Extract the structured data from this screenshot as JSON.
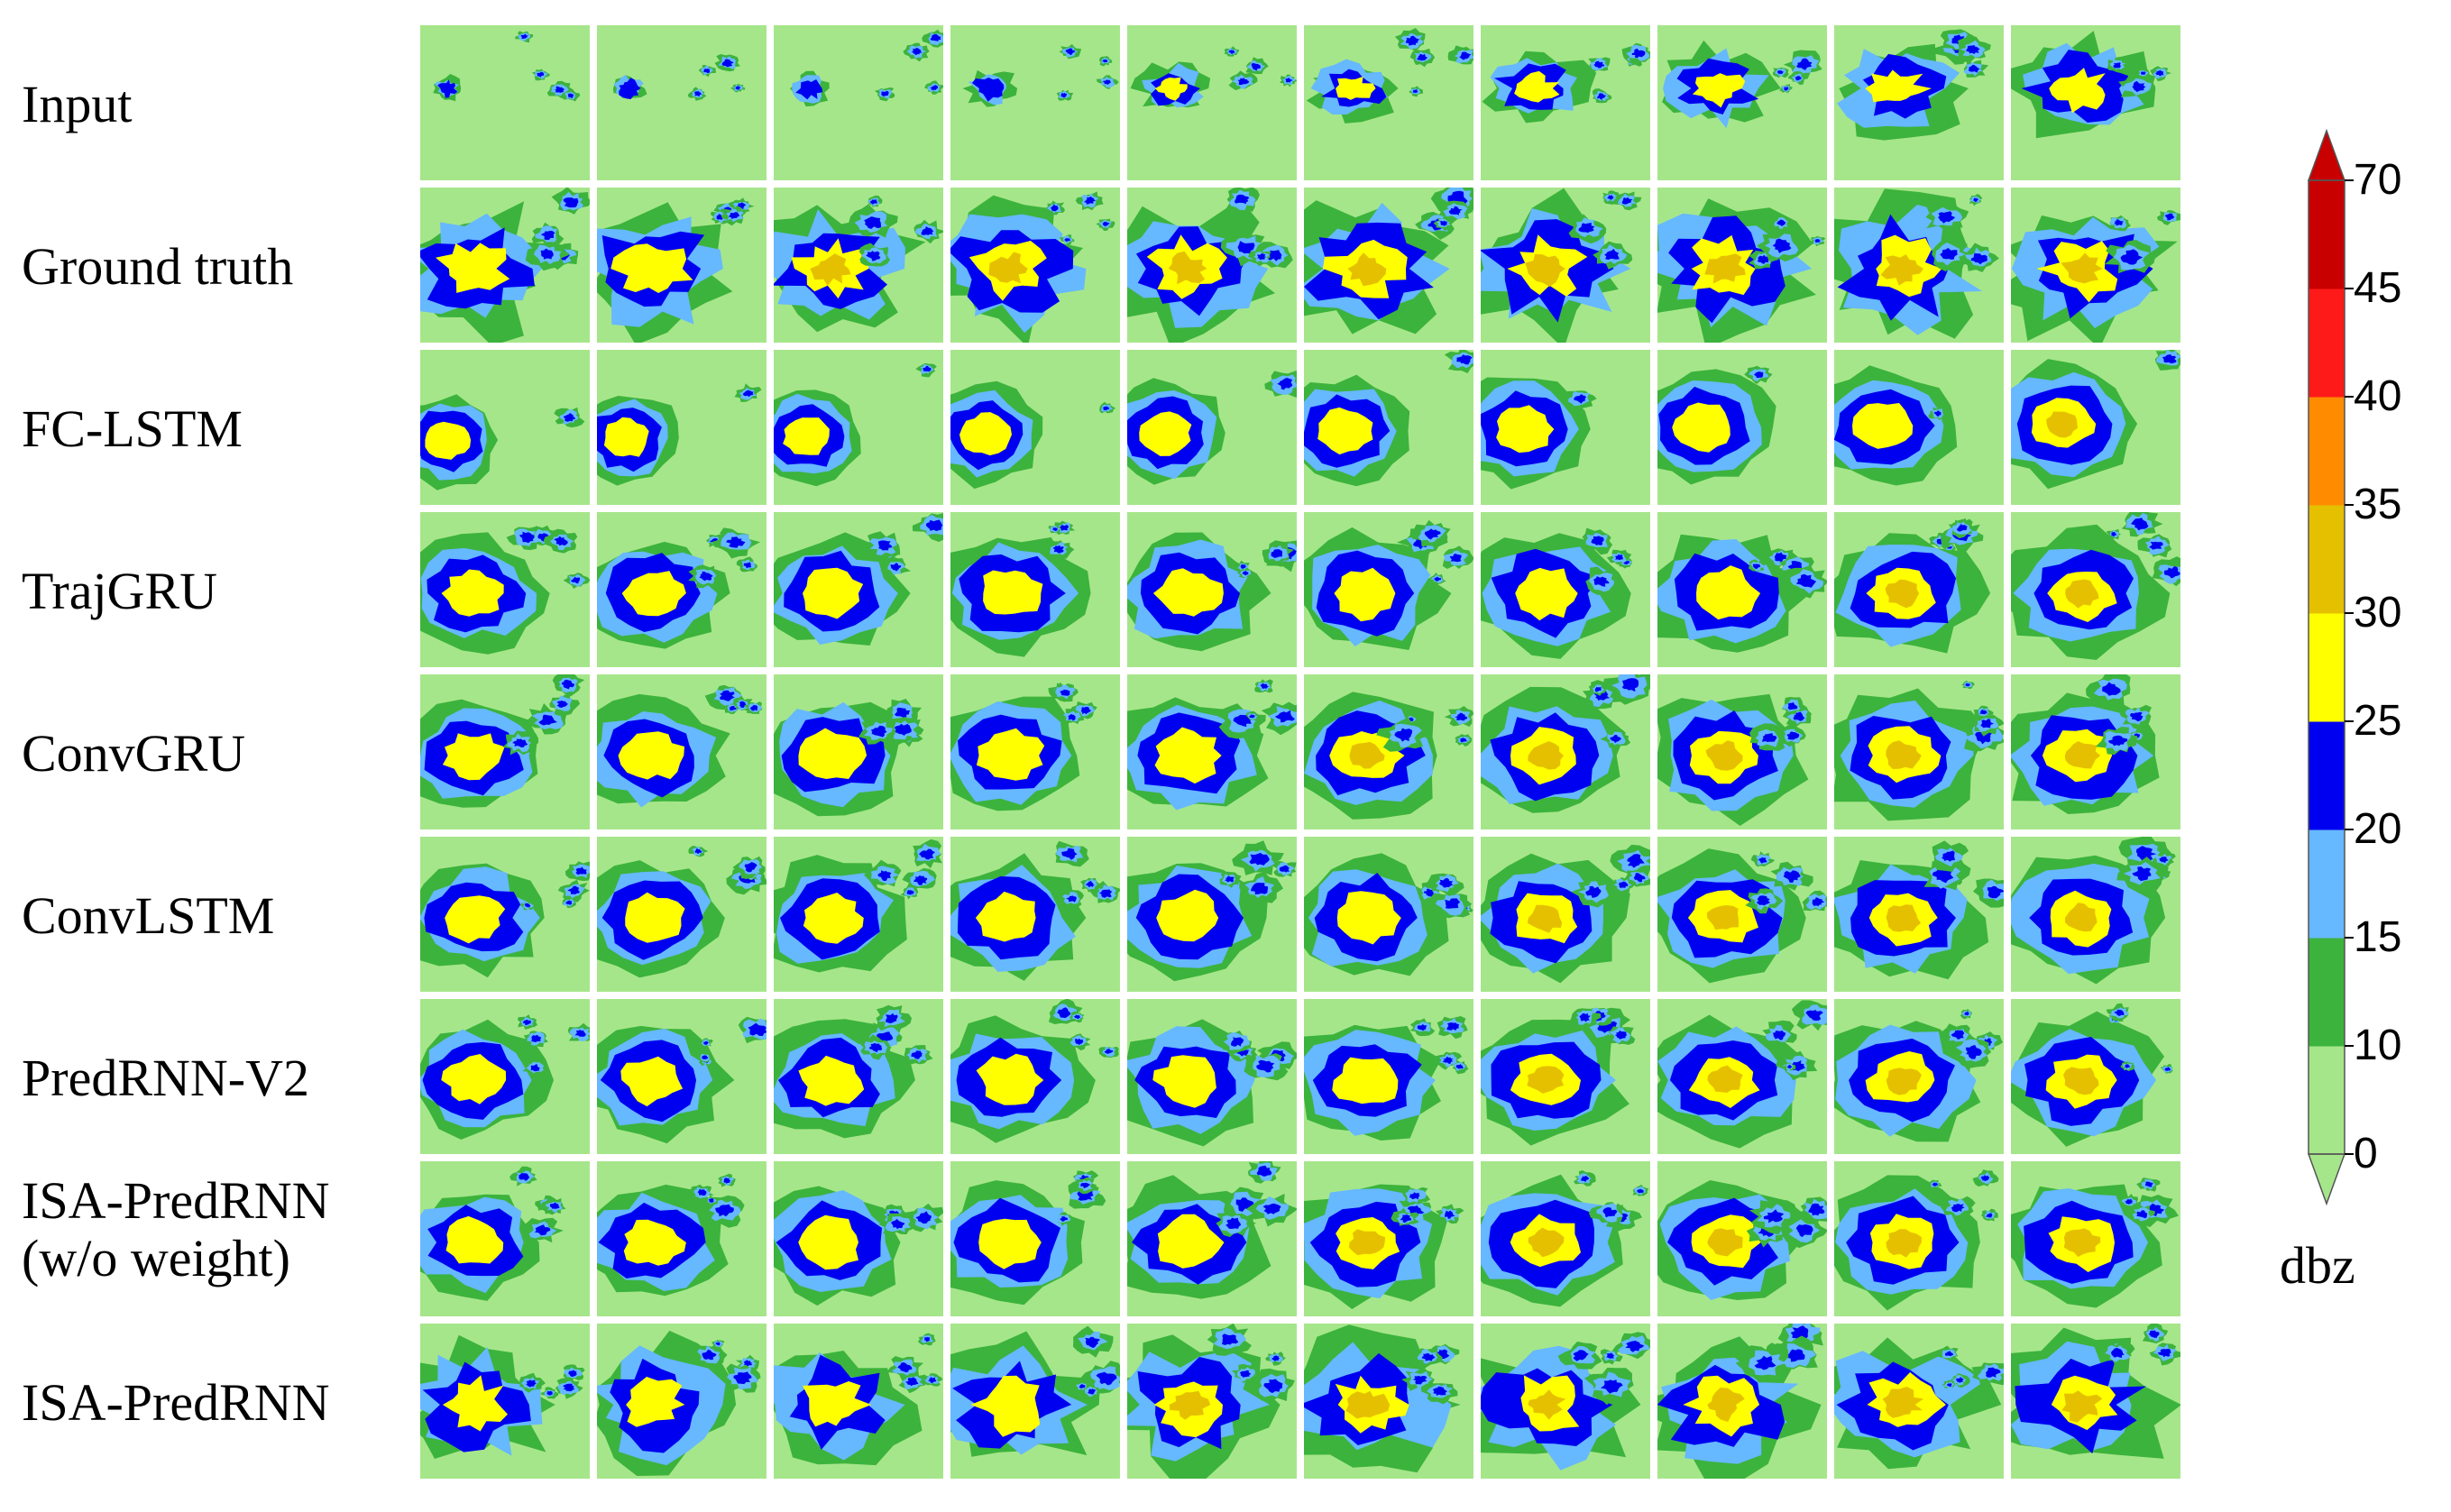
{
  "figure": {
    "rows": [
      {
        "label": "Input",
        "label2": "",
        "intensity": [
          0.05,
          0.08,
          0.12,
          0.2,
          0.32,
          0.42,
          0.55,
          0.65,
          0.72,
          0.78
        ],
        "style": "input"
      },
      {
        "label": "Ground truth",
        "label2": "",
        "intensity": [
          0.8,
          0.82,
          0.85,
          0.88,
          0.92,
          0.95,
          0.96,
          0.97,
          0.98,
          0.99
        ],
        "style": "truth"
      },
      {
        "label": "FC-LSTM",
        "label2": "",
        "intensity": [
          0.35,
          0.38,
          0.42,
          0.48,
          0.55,
          0.62,
          0.68,
          0.74,
          0.8,
          0.85
        ],
        "style": "blob"
      },
      {
        "label": "TrajGRU",
        "label2": "",
        "intensity": [
          0.6,
          0.64,
          0.68,
          0.72,
          0.76,
          0.8,
          0.82,
          0.84,
          0.86,
          0.88
        ],
        "style": "smooth"
      },
      {
        "label": "ConvGRU",
        "label2": "",
        "intensity": [
          0.62,
          0.66,
          0.72,
          0.78,
          0.82,
          0.86,
          0.88,
          0.9,
          0.92,
          0.94
        ],
        "style": "smooth"
      },
      {
        "label": "ConvLSTM",
        "label2": "",
        "intensity": [
          0.6,
          0.65,
          0.7,
          0.75,
          0.8,
          0.83,
          0.86,
          0.88,
          0.9,
          0.92
        ],
        "style": "smooth"
      },
      {
        "label": "PredRNN-V2",
        "label2": "",
        "intensity": [
          0.6,
          0.65,
          0.7,
          0.74,
          0.78,
          0.82,
          0.85,
          0.87,
          0.89,
          0.9
        ],
        "style": "smooth"
      },
      {
        "label": "ISA-PredRNN",
        "label2": "(w/o weight)",
        "intensity": [
          0.6,
          0.66,
          0.72,
          0.78,
          0.82,
          0.86,
          0.88,
          0.9,
          0.92,
          0.94
        ],
        "style": "smooth"
      },
      {
        "label": "ISA-PredRNN",
        "label2": "",
        "intensity": [
          0.64,
          0.68,
          0.74,
          0.8,
          0.85,
          0.88,
          0.9,
          0.93,
          0.95,
          0.97
        ],
        "style": "truth"
      }
    ],
    "columns": 10,
    "colorbar": {
      "ticks": [
        "0",
        "10",
        "15",
        "20",
        "25",
        "30",
        "35",
        "40",
        "45",
        "70"
      ],
      "colors": [
        "#a6e68a",
        "#3cb33c",
        "#66b8ff",
        "#0000f0",
        "#ffff00",
        "#e5c000",
        "#ff8c00",
        "#ff1a1a",
        "#c80000"
      ],
      "unit": "dbz"
    }
  }
}
